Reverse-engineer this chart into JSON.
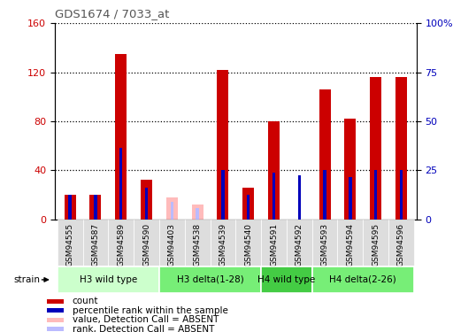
{
  "title": "GDS1674 / 7033_at",
  "samples": [
    "GSM94555",
    "GSM94587",
    "GSM94589",
    "GSM94590",
    "GSM94403",
    "GSM94538",
    "GSM94539",
    "GSM94540",
    "GSM94591",
    "GSM94592",
    "GSM94593",
    "GSM94594",
    "GSM94595",
    "GSM94596"
  ],
  "count": [
    20,
    20,
    135,
    32,
    0,
    0,
    122,
    26,
    80,
    0,
    106,
    82,
    116,
    116
  ],
  "percentile": [
    20,
    20,
    58,
    26,
    0,
    0,
    40,
    20,
    38,
    36,
    40,
    34,
    40,
    40
  ],
  "absent_value": [
    0,
    0,
    0,
    0,
    18,
    12,
    0,
    0,
    0,
    0,
    0,
    0,
    0,
    0
  ],
  "absent_rank": [
    0,
    0,
    0,
    0,
    14,
    9,
    0,
    0,
    0,
    0,
    0,
    0,
    0,
    0
  ],
  "is_absent": [
    false,
    false,
    false,
    false,
    true,
    true,
    false,
    false,
    false,
    false,
    false,
    false,
    false,
    false
  ],
  "groups": [
    {
      "label": "H3 wild type",
      "start": 0,
      "end": 3,
      "color": "#ccffcc"
    },
    {
      "label": "H3 delta(1-28)",
      "start": 4,
      "end": 7,
      "color": "#77ee77"
    },
    {
      "label": "H4 wild type",
      "start": 8,
      "end": 9,
      "color": "#44cc44"
    },
    {
      "label": "H4 delta(2-26)",
      "start": 10,
      "end": 13,
      "color": "#77ee77"
    }
  ],
  "left_ylim": [
    0,
    160
  ],
  "right_ylim": [
    0,
    100
  ],
  "left_yticks": [
    0,
    40,
    80,
    120,
    160
  ],
  "right_yticks": [
    0,
    25,
    50,
    75,
    100
  ],
  "count_color": "#cc0000",
  "percentile_color": "#0000bb",
  "absent_value_color": "#ffbbbb",
  "absent_rank_color": "#bbbbff",
  "bg_color": "#ffffff",
  "plot_bg": "#ffffff",
  "tick_bg": "#dddddd",
  "title_color": "#555555",
  "legend_items": [
    {
      "label": "count",
      "color": "#cc0000"
    },
    {
      "label": "percentile rank within the sample",
      "color": "#0000bb"
    },
    {
      "label": "value, Detection Call = ABSENT",
      "color": "#ffbbbb"
    },
    {
      "label": "rank, Detection Call = ABSENT",
      "color": "#bbbbff"
    }
  ]
}
